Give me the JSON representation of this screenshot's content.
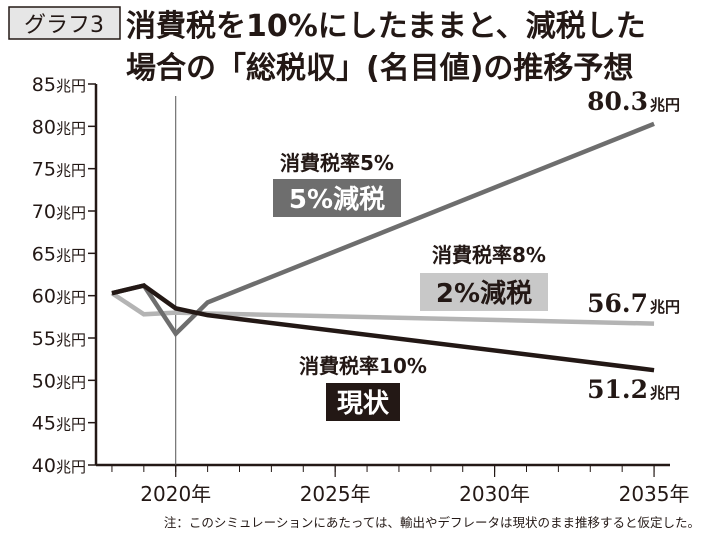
{
  "badge": "グラフ3",
  "title_lines": [
    "消費税を10%にしたままと、減税した",
    "場合の「総税収」(名目値)の推移予想"
  ],
  "note": "注：このシミュレーションにあたっては、輸出やデフレータは現状のまま推移すると仮定した。",
  "chart_data": {
    "type": "line",
    "title": "消費税を10%にしたままと、減税した場合の「総税収」(名目値)の推移予想",
    "xlim": [
      2017.5,
      2035.5
    ],
    "ylim": [
      40,
      85
    ],
    "y_ticks": [
      40,
      45,
      50,
      55,
      60,
      65,
      70,
      75,
      80,
      85
    ],
    "y_tick_suffix": "兆円",
    "x_ticks": [
      2020,
      2025,
      2030,
      2035
    ],
    "x_tick_labels": [
      "2020年",
      "2025年",
      "2030年",
      "2035年"
    ],
    "reference_line_x": 2020,
    "grid": false,
    "series": [
      {
        "name": "消費税率5%",
        "tag": "5%減税",
        "color": "#6e6e6e",
        "x": [
          2018,
          2019,
          2020,
          2021,
          2035
        ],
        "values": [
          60.3,
          61.2,
          55.5,
          59.2,
          80.3
        ],
        "end_label": "80.3",
        "unit": "兆円"
      },
      {
        "name": "消費税率8%",
        "tag": "2%減税",
        "color": "#b4b4b4",
        "x": [
          2018,
          2019,
          2020,
          2021,
          2035
        ],
        "values": [
          60.3,
          57.8,
          58.0,
          57.9,
          56.7
        ],
        "end_label": "56.7",
        "unit": "兆円"
      },
      {
        "name": "消費税率10%",
        "tag": "現状",
        "color": "#231815",
        "x": [
          2018,
          2019,
          2020,
          2021,
          2035
        ],
        "values": [
          60.3,
          61.2,
          58.5,
          57.7,
          51.2
        ],
        "end_label": "51.2",
        "unit": "兆円"
      }
    ]
  }
}
